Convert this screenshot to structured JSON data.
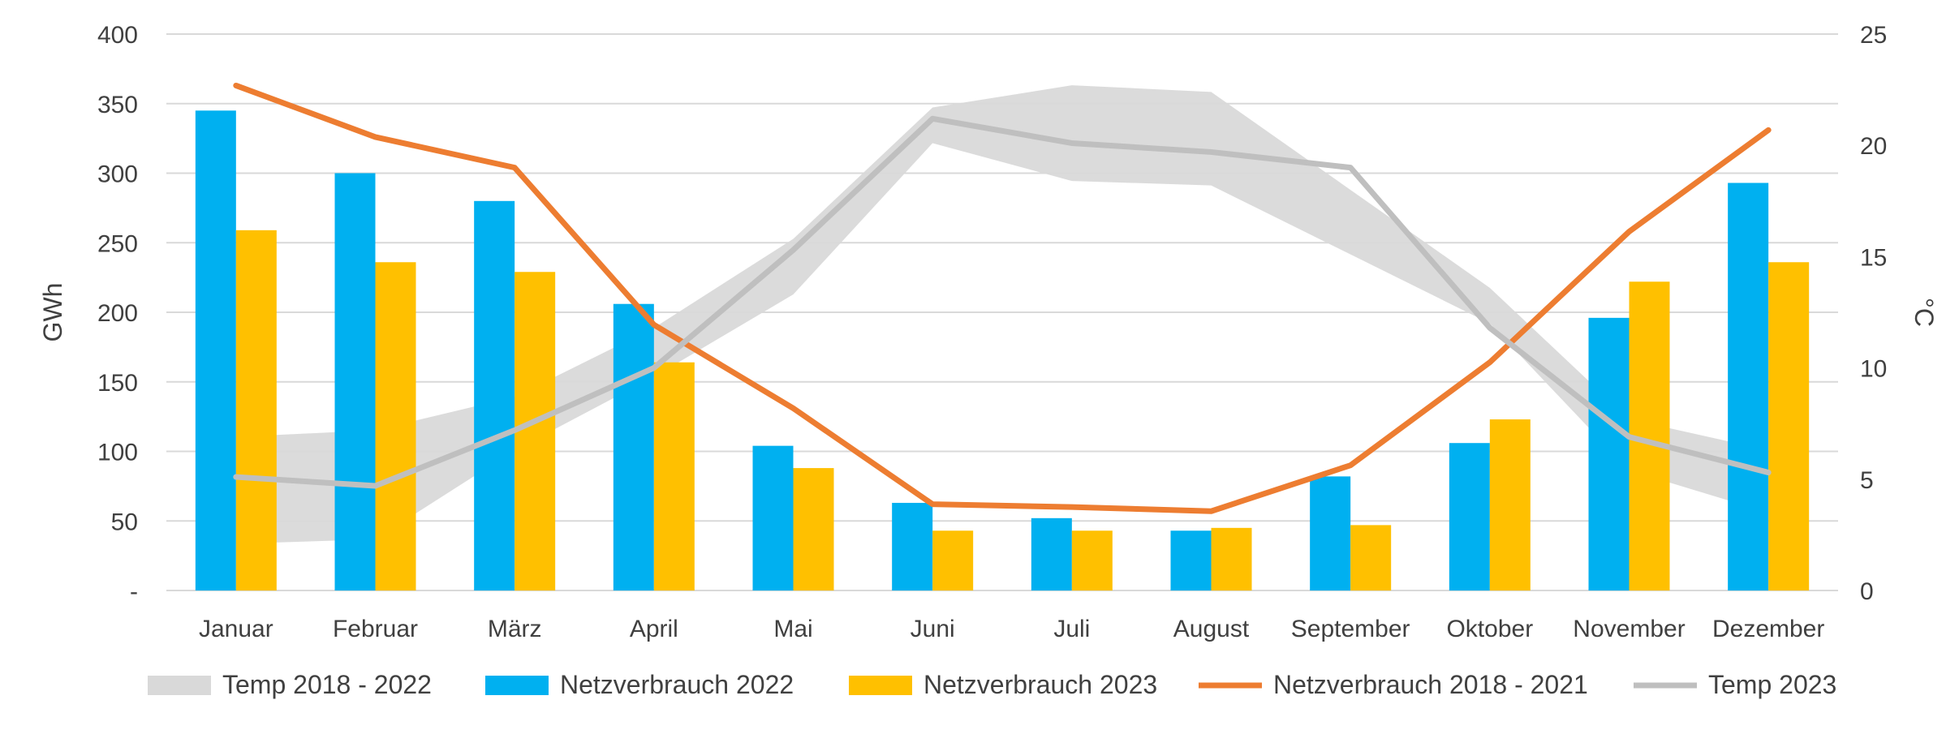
{
  "chart_data": {
    "type": "bar",
    "categories": [
      "Januar",
      "Februar",
      "März",
      "April",
      "Mai",
      "Juni",
      "Juli",
      "August",
      "September",
      "Oktober",
      "November",
      "Dezember"
    ],
    "series": [
      {
        "name": "Netzverbrauch 2022",
        "type": "bar",
        "axis": "left",
        "color": "#00B0F0",
        "values": [
          345,
          300,
          280,
          206,
          104,
          63,
          52,
          43,
          82,
          106,
          196,
          293
        ]
      },
      {
        "name": "Netzverbrauch 2023",
        "type": "bar",
        "axis": "left",
        "color": "#FFC000",
        "values": [
          259,
          236,
          229,
          164,
          88,
          43,
          43,
          45,
          47,
          123,
          222,
          236
        ]
      },
      {
        "name": "Netzverbrauch 2018 - 2021",
        "type": "line",
        "axis": "left",
        "color": "#ED7D31",
        "values": [
          363,
          326,
          304,
          191,
          131,
          62,
          60,
          57,
          90,
          164,
          258,
          331
        ]
      },
      {
        "name": "Temp 2023",
        "type": "line",
        "axis": "right",
        "color": "#BFBFBF",
        "values": [
          5.1,
          4.7,
          7.2,
          10.0,
          15.3,
          21.2,
          20.1,
          19.7,
          19.0,
          11.8,
          6.9,
          5.3
        ]
      },
      {
        "name": "Temp 2018 - 2022",
        "type": "area-range",
        "axis": "right",
        "color": "#D9D9D9",
        "low": [
          2.1,
          2.3,
          6.3,
          9.6,
          13.3,
          20.1,
          18.4,
          18.2,
          15.1,
          12.0,
          5.4,
          3.5
        ],
        "high": [
          6.9,
          7.2,
          8.7,
          11.8,
          15.8,
          21.7,
          22.7,
          22.4,
          18.0,
          13.6,
          7.7,
          6.3
        ]
      }
    ],
    "y_left": {
      "label": "GWh",
      "ylim": [
        0,
        400
      ],
      "ticks": [
        0,
        50,
        100,
        150,
        200,
        250,
        300,
        350,
        400
      ],
      "tick_labels": [
        "-",
        "50",
        "100",
        "150",
        "200",
        "250",
        "300",
        "350",
        "400"
      ]
    },
    "y_right": {
      "label": "°C",
      "ylim": [
        0,
        25
      ],
      "ticks": [
        0,
        5,
        10,
        15,
        20,
        25
      ],
      "tick_labels": [
        "0",
        "5",
        "10",
        "15",
        "20",
        "25"
      ]
    },
    "grid": true,
    "legend_position": "bottom",
    "legend_order": [
      "Temp 2018 - 2022",
      "Netzverbrauch 2022",
      "Netzverbrauch 2023",
      "Netzverbrauch 2018 - 2021",
      "Temp 2023"
    ],
    "gridline_color": "#D9D9D9"
  }
}
